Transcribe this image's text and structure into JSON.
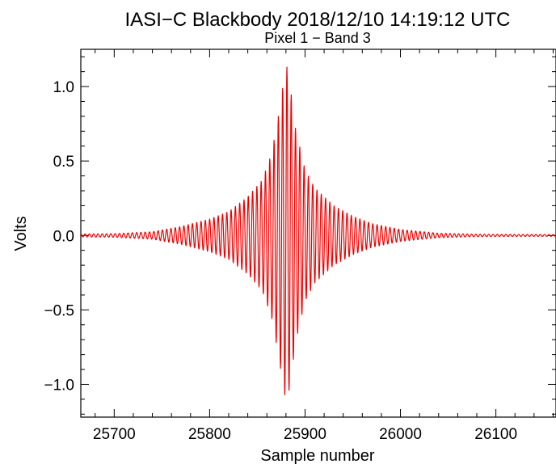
{
  "chart_data": {
    "type": "line",
    "title": "IASI−C Blackbody  2018/12/10 14:19:12 UTC",
    "subtitle": "Pixel  1 − Band  3",
    "xlabel": "Sample number",
    "ylabel": "Volts",
    "xlim": [
      25665,
      26163
    ],
    "ylim": [
      -1.22,
      1.25
    ],
    "x_ticks": [
      25700,
      25800,
      25900,
      26000,
      26100
    ],
    "x_tick_labels": [
      "25700",
      "25800",
      "25900",
      "26000",
      "26100"
    ],
    "y_ticks": [
      -1.0,
      -0.5,
      0.0,
      0.5,
      1.0
    ],
    "y_tick_labels": [
      "−1.0",
      "−0.5",
      "0.0",
      "0.5",
      "1.0"
    ],
    "grid": false,
    "legend": "none",
    "series": [
      {
        "color": "#ee0000",
        "center_sample": 25881,
        "oscillation_period_samples": 4.5,
        "envelope": [
          [
            25665,
            0.01
          ],
          [
            25700,
            0.012
          ],
          [
            25740,
            0.025
          ],
          [
            25770,
            0.06
          ],
          [
            25800,
            0.11
          ],
          [
            25820,
            0.16
          ],
          [
            25840,
            0.26
          ],
          [
            25855,
            0.37
          ],
          [
            25865,
            0.55
          ],
          [
            25872,
            0.8
          ],
          [
            25878,
            1.05
          ],
          [
            25881,
            1.13
          ],
          [
            25885,
            0.97
          ],
          [
            25890,
            0.72
          ],
          [
            25900,
            0.44
          ],
          [
            25910,
            0.32
          ],
          [
            25930,
            0.2
          ],
          [
            25950,
            0.13
          ],
          [
            25970,
            0.08
          ],
          [
            26000,
            0.04
          ],
          [
            26040,
            0.015
          ],
          [
            26080,
            0.008
          ],
          [
            26163,
            0.006
          ]
        ]
      }
    ]
  }
}
